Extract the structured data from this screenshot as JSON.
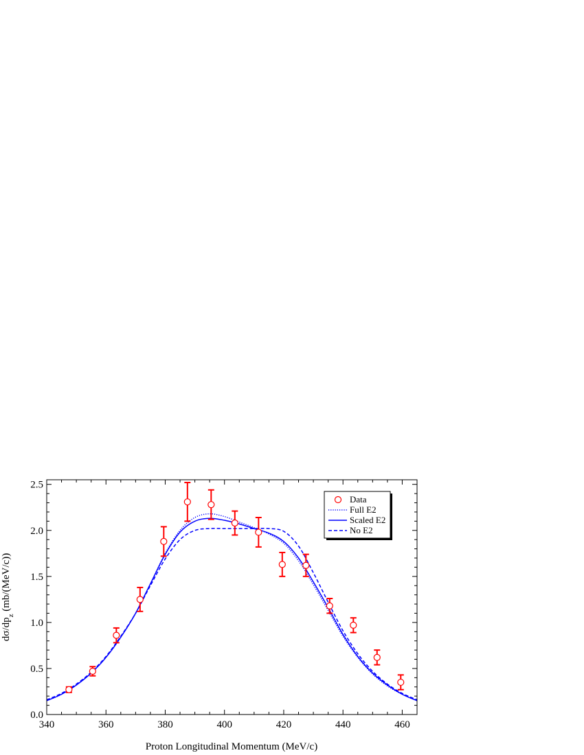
{
  "chart_data": {
    "type": "scatter",
    "title": "",
    "xlabel": "Proton Longitudinal Momentum (MeV/c)",
    "ylabel": {
      "prefix": "dσ/dp",
      "sub": "z",
      "suffix": " (mb/(MeV/c))"
    },
    "xlim": [
      340,
      465
    ],
    "ylim": [
      0,
      2.55
    ],
    "x_ticks": [
      340,
      360,
      380,
      400,
      420,
      440,
      460
    ],
    "y_ticks": [
      0.0,
      0.5,
      1.0,
      1.5,
      2.0,
      2.5
    ],
    "x_tick_labels": [
      "340",
      "360",
      "380",
      "400",
      "420",
      "440",
      "460"
    ],
    "y_tick_labels": [
      "0.0",
      "0.5",
      "1.0",
      "1.5",
      "2.0",
      "2.5"
    ],
    "grid": false,
    "legend_position": "top-right",
    "colors": {
      "data": "#ff0000",
      "curves": "#0000ff"
    },
    "series": [
      {
        "name": "Data",
        "kind": "points-with-errorbars",
        "x": [
          347.5,
          355.5,
          363.5,
          371.5,
          379.5,
          387.5,
          395.5,
          403.5,
          411.5,
          419.5,
          427.5,
          435.5,
          443.5,
          451.5,
          459.5
        ],
        "y": [
          0.27,
          0.47,
          0.86,
          1.25,
          1.88,
          2.31,
          2.28,
          2.08,
          1.98,
          1.63,
          1.62,
          1.18,
          0.97,
          0.62,
          0.35
        ],
        "err": [
          0.03,
          0.05,
          0.08,
          0.13,
          0.16,
          0.21,
          0.16,
          0.13,
          0.16,
          0.13,
          0.12,
          0.08,
          0.08,
          0.08,
          0.08
        ]
      },
      {
        "name": "Full E2",
        "kind": "curve",
        "style": "dotted",
        "x": [
          340,
          345,
          350,
          355,
          360,
          365,
          370,
          375,
          380,
          385,
          390,
          395,
          400,
          405,
          410,
          415,
          420,
          425,
          430,
          435,
          440,
          445,
          450,
          455,
          460,
          465
        ],
        "y": [
          0.15,
          0.22,
          0.32,
          0.45,
          0.62,
          0.84,
          1.1,
          1.42,
          1.75,
          2.0,
          2.14,
          2.18,
          2.15,
          2.09,
          2.03,
          1.96,
          1.86,
          1.67,
          1.41,
          1.13,
          0.85,
          0.62,
          0.44,
          0.31,
          0.22,
          0.15
        ]
      },
      {
        "name": "Scaled E2",
        "kind": "curve",
        "style": "solid",
        "x": [
          340,
          345,
          350,
          355,
          360,
          365,
          370,
          375,
          380,
          385,
          390,
          395,
          400,
          405,
          410,
          415,
          420,
          425,
          430,
          435,
          440,
          445,
          450,
          455,
          460,
          465
        ],
        "y": [
          0.15,
          0.22,
          0.32,
          0.45,
          0.62,
          0.84,
          1.1,
          1.42,
          1.74,
          1.98,
          2.1,
          2.13,
          2.11,
          2.07,
          2.02,
          1.97,
          1.88,
          1.7,
          1.44,
          1.16,
          0.87,
          0.63,
          0.45,
          0.32,
          0.22,
          0.15
        ]
      },
      {
        "name": "No E2",
        "kind": "curve",
        "style": "dashed",
        "x": [
          340,
          345,
          350,
          355,
          360,
          365,
          370,
          375,
          380,
          385,
          390,
          395,
          400,
          405,
          410,
          415,
          420,
          425,
          430,
          435,
          440,
          445,
          450,
          455,
          460,
          465
        ],
        "y": [
          0.16,
          0.23,
          0.33,
          0.46,
          0.63,
          0.85,
          1.1,
          1.4,
          1.69,
          1.9,
          2.0,
          2.02,
          2.02,
          2.02,
          2.02,
          2.02,
          1.99,
          1.83,
          1.54,
          1.22,
          0.91,
          0.66,
          0.47,
          0.33,
          0.23,
          0.16
        ]
      }
    ]
  }
}
